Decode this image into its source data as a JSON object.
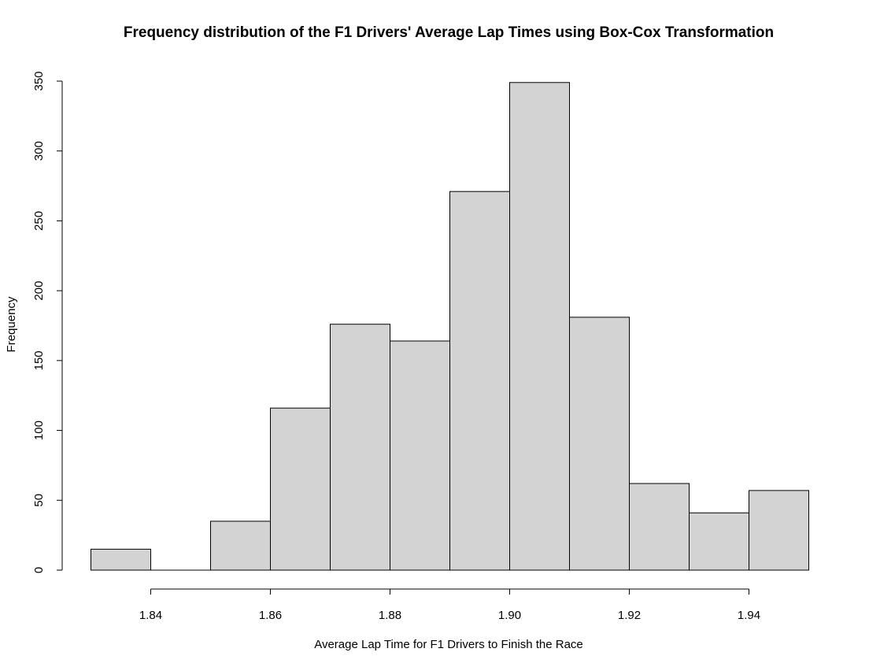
{
  "chart_data": {
    "type": "bar",
    "title": "Frequency distribution of the F1 Drivers' Average Lap Times using Box-Cox Transformation",
    "xlabel": "Average Lap Time for F1 Drivers to Finish the Race",
    "ylabel": "Frequency",
    "bins": [
      {
        "start": 1.83,
        "end": 1.84,
        "value": 15
      },
      {
        "start": 1.84,
        "end": 1.85,
        "value": 0
      },
      {
        "start": 1.85,
        "end": 1.86,
        "value": 35
      },
      {
        "start": 1.86,
        "end": 1.87,
        "value": 116
      },
      {
        "start": 1.87,
        "end": 1.88,
        "value": 176
      },
      {
        "start": 1.88,
        "end": 1.89,
        "value": 164
      },
      {
        "start": 1.89,
        "end": 1.9,
        "value": 271
      },
      {
        "start": 1.9,
        "end": 1.91,
        "value": 349
      },
      {
        "start": 1.91,
        "end": 1.92,
        "value": 181
      },
      {
        "start": 1.92,
        "end": 1.93,
        "value": 62
      },
      {
        "start": 1.93,
        "end": 1.94,
        "value": 41
      },
      {
        "start": 1.94,
        "end": 1.95,
        "value": 57
      }
    ],
    "xlim": [
      1.83,
      1.95
    ],
    "ylim": [
      0,
      350
    ],
    "x_ticks": [
      1.84,
      1.86,
      1.88,
      1.9,
      1.92,
      1.94
    ],
    "x_tick_labels": [
      "1.84",
      "1.86",
      "1.88",
      "1.90",
      "1.92",
      "1.94"
    ],
    "y_ticks": [
      0,
      50,
      100,
      150,
      200,
      250,
      300,
      350
    ],
    "y_tick_labels": [
      "0",
      "50",
      "100",
      "150",
      "200",
      "250",
      "300",
      "350"
    ],
    "grid": false,
    "bar_color": "#d3d3d3",
    "edge_color": "#000000"
  }
}
